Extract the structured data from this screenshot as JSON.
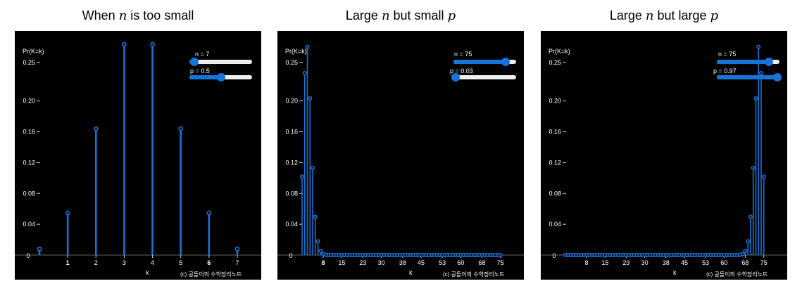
{
  "charts": [
    {
      "title_parts": [
        "When ",
        "n",
        " is too small"
      ],
      "y_axis_label": "Pr(K=k)",
      "x_axis_label": "k",
      "credit": "(c) 공돌이의 수학정리노트",
      "sliders": [
        {
          "label": "n = 7",
          "value": 7,
          "min": 1,
          "max": 75
        },
        {
          "label": "p = 0.5",
          "value": 0.5,
          "min": 0,
          "max": 1
        }
      ]
    },
    {
      "title_parts": [
        "Large ",
        "n",
        " but small ",
        "p"
      ],
      "y_axis_label": "Pr(K=k)",
      "x_axis_label": "k",
      "credit": "(c) 공돌이의 수학정리노트",
      "sliders": [
        {
          "label": "n = 75",
          "value": 75,
          "min": 1,
          "max": 90
        },
        {
          "label": "p = 0.03",
          "value": 0.03,
          "min": 0,
          "max": 1
        }
      ]
    },
    {
      "title_parts": [
        "Large ",
        "n",
        " but large ",
        "p"
      ],
      "y_axis_label": "Pr(K=k)",
      "x_axis_label": "k",
      "credit": "(c) 공돌이의 수학정리노트",
      "sliders": [
        {
          "label": "n = 75",
          "value": 75,
          "min": 1,
          "max": 90
        },
        {
          "label": "p = 0.97",
          "value": 0.97,
          "min": 0,
          "max": 1
        }
      ]
    }
  ],
  "chart_data": [
    {
      "type": "bar",
      "n": 7,
      "p": 0.5,
      "ylim": [
        0,
        0.28
      ],
      "xlim": [
        0,
        7.3
      ],
      "yticks": [
        0.04,
        0.08,
        0.12,
        0.16,
        0.2,
        0.25
      ],
      "xticks": [
        1,
        2,
        3,
        4,
        5,
        6,
        7
      ],
      "xticks_bold": [
        1,
        6
      ],
      "color": "#1673d9"
    },
    {
      "type": "bar",
      "n": 75,
      "p": 0.03,
      "ylim": [
        0,
        0.28
      ],
      "xlim": [
        0,
        78
      ],
      "yticks": [
        0.04,
        0.08,
        0.12,
        0.16,
        0.2,
        0.25
      ],
      "xticks": [
        8,
        15,
        23,
        30,
        38,
        45,
        53,
        60,
        68,
        75
      ],
      "xticks_bold": [
        8
      ],
      "color": "#1673d9"
    },
    {
      "type": "bar",
      "n": 75,
      "p": 0.97,
      "ylim": [
        0,
        0.28
      ],
      "xlim": [
        0,
        78
      ],
      "yticks": [
        0.04,
        0.08,
        0.12,
        0.16,
        0.2,
        0.25
      ],
      "xticks": [
        8,
        15,
        23,
        30,
        38,
        45,
        53,
        60,
        68,
        75
      ],
      "xticks_bold": [],
      "color": "#1673d9"
    }
  ]
}
